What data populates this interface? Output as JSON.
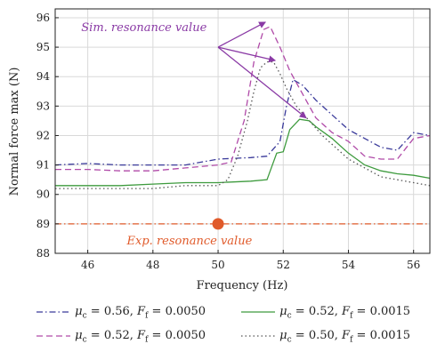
{
  "chart_data": {
    "type": "line",
    "xlabel": "Frequency (Hz)",
    "ylabel": "Normal force max (N)",
    "xlim": [
      45,
      56.5
    ],
    "ylim": [
      88,
      96.3
    ],
    "xticks": [
      46,
      48,
      50,
      52,
      54,
      56
    ],
    "yticks": [
      88,
      89,
      90,
      91,
      92,
      93,
      94,
      95,
      96
    ],
    "grid": true,
    "legend_position": "bottom",
    "series": [
      {
        "name": "μc = 0.56, Ff = 0.0050",
        "mu": "0.56",
        "ff": "0.0050",
        "color": "#3a3a9a",
        "dash": "dashdot",
        "x": [
          45,
          46,
          47,
          48,
          49,
          50,
          51,
          51.5,
          51.9,
          52.1,
          52.3,
          52.6,
          53.0,
          53.5,
          54,
          54.5,
          55,
          55.5,
          56,
          56.5
        ],
        "y": [
          91.0,
          91.05,
          91.0,
          91.0,
          91.0,
          91.2,
          91.25,
          91.3,
          91.8,
          93.0,
          93.9,
          93.7,
          93.2,
          92.7,
          92.2,
          91.9,
          91.6,
          91.5,
          92.1,
          92.0
        ]
      },
      {
        "name": "μc = 0.52, Ff = 0.0050",
        "mu": "0.52",
        "ff": "0.0050",
        "color": "#b04aa8",
        "dash": "dashed",
        "x": [
          45,
          46,
          47,
          48,
          49,
          50,
          50.4,
          50.8,
          51.1,
          51.4,
          51.6,
          51.9,
          52.2,
          52.6,
          53.0,
          53.5,
          54,
          54.5,
          55,
          55.5,
          56,
          56.5
        ],
        "y": [
          90.85,
          90.85,
          90.8,
          90.8,
          90.9,
          91.0,
          91.1,
          92.5,
          94.5,
          95.6,
          95.7,
          95.0,
          94.2,
          93.4,
          92.6,
          92.1,
          91.8,
          91.3,
          91.2,
          91.2,
          91.9,
          92.0
        ]
      },
      {
        "name": "μc = 0.52, Ff = 0.0015",
        "mu": "0.52",
        "ff": "0.0015",
        "color": "#3e9b3e",
        "dash": "solid",
        "x": [
          45,
          46,
          47,
          48,
          49,
          50,
          51,
          51.5,
          51.8,
          52.0,
          52.2,
          52.5,
          52.8,
          53.0,
          53.5,
          54,
          54.5,
          55,
          55.5,
          56,
          56.5
        ],
        "y": [
          90.3,
          90.3,
          90.3,
          90.35,
          90.4,
          90.4,
          90.45,
          90.5,
          91.4,
          91.45,
          92.2,
          92.55,
          92.5,
          92.3,
          91.9,
          91.4,
          91.0,
          90.8,
          90.7,
          90.65,
          90.55
        ]
      },
      {
        "name": "μc = 0.50, Ff = 0.0015",
        "mu": "0.50",
        "ff": "0.0015",
        "color": "#555555",
        "dash": "dotted",
        "x": [
          45,
          46,
          47,
          48,
          49,
          50,
          50.3,
          50.6,
          50.9,
          51.1,
          51.3,
          51.5,
          51.7,
          51.9,
          52.1,
          52.4,
          52.8,
          53.2,
          53.6,
          54,
          54.5,
          55,
          55.5,
          56,
          56.5
        ],
        "y": [
          90.2,
          90.2,
          90.2,
          90.2,
          90.3,
          90.3,
          90.5,
          91.3,
          92.5,
          93.5,
          94.3,
          94.5,
          94.5,
          94.1,
          93.6,
          93.0,
          92.5,
          92.0,
          91.6,
          91.2,
          90.9,
          90.6,
          90.5,
          90.4,
          90.3
        ]
      }
    ],
    "reference_line": {
      "y": 89.0,
      "color": "#e05a2a",
      "dash": "dashdot"
    },
    "experimental_point": {
      "x": 50.0,
      "y": 89.0,
      "color": "#e05a2a"
    },
    "annotations": {
      "sim_label": "Sim. resonance value",
      "sim_color": "#8a3aa5",
      "sim_label_x": 45.8,
      "sim_label_y": 95.55,
      "sim_origin": {
        "x": 50.0,
        "y": 95.0
      },
      "sim_targets": [
        {
          "x": 51.45,
          "y": 95.85
        },
        {
          "x": 51.75,
          "y": 94.55
        },
        {
          "x": 52.7,
          "y": 92.6
        }
      ],
      "exp_label": "Exp. resonance value",
      "exp_color": "#e05a2a",
      "exp_label_x": 47.2,
      "exp_label_y": 88.3
    }
  }
}
